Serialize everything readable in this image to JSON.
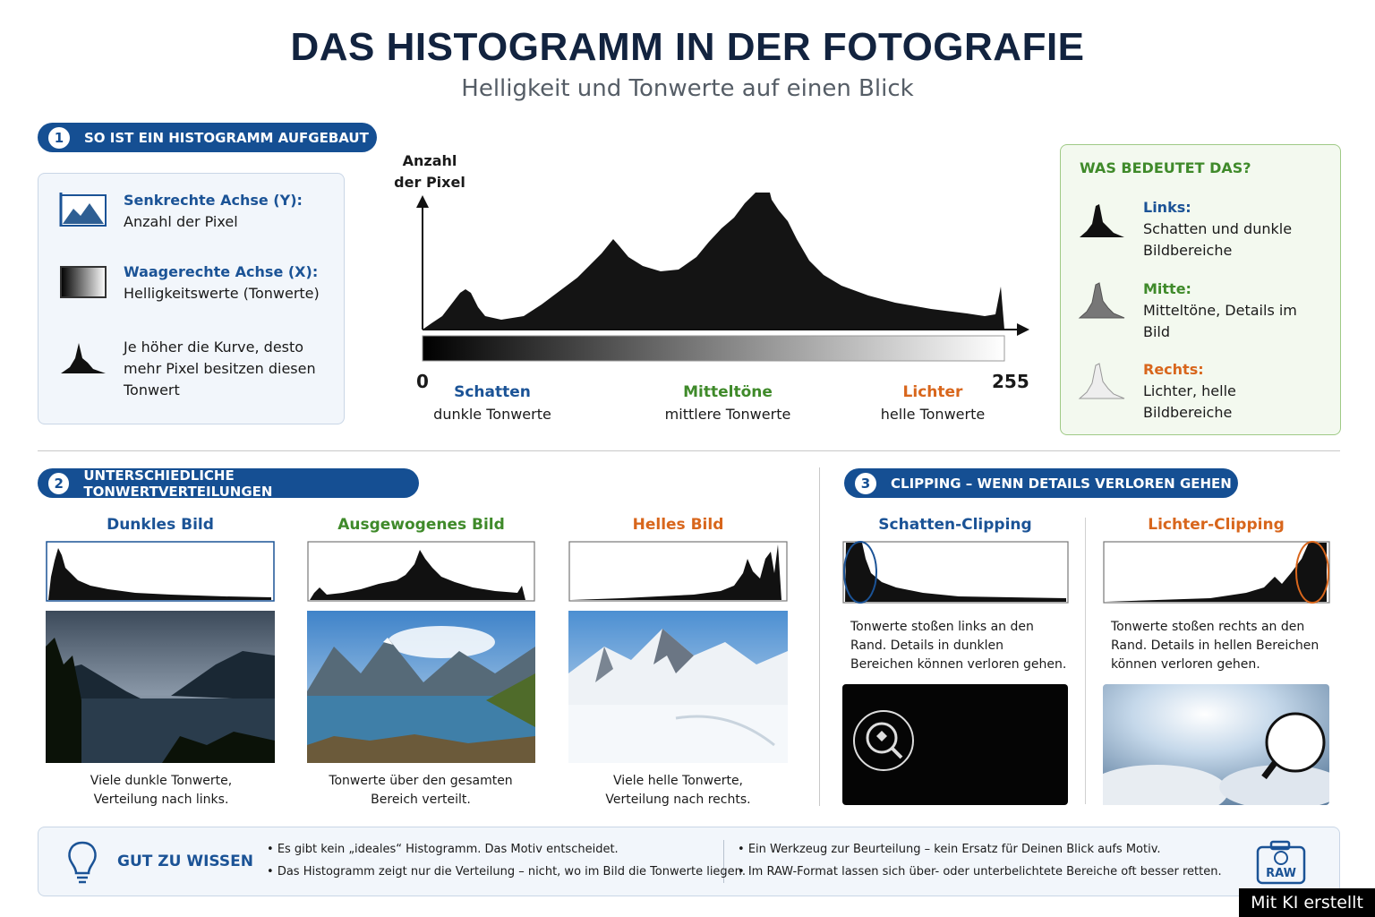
{
  "header": {
    "title": "DAS HISTOGRAMM IN DER FOTOGRAFIE",
    "subtitle": "Helligkeit und Tonwerte auf einen Blick"
  },
  "section1": {
    "number": "1",
    "title": "SO IST EIN HISTOGRAMM AUFGEBAUT",
    "items": [
      {
        "label": "Senkrechte Achse (Y):",
        "text": "Anzahl der Pixel"
      },
      {
        "label": "Waagerechte Achse (X):",
        "text": "Helligkeitswerte (Tonwerte)"
      },
      {
        "text": "Je höher die Kurve, desto mehr Pixel besitzen diesen Tonwert"
      }
    ],
    "diagram": {
      "y_label": "Anzahl der Pixel",
      "x_min": "0",
      "x_max": "255",
      "zones": [
        {
          "label": "Schatten",
          "text": "dunkle Tonwerte"
        },
        {
          "label": "Mitteltöne",
          "text": "mittlere Tonwerte"
        },
        {
          "label": "Lichter",
          "text": "helle Tonwerte"
        }
      ]
    },
    "meaning": {
      "title": "WAS BEDEUTET DAS?",
      "items": [
        {
          "label": "Links:",
          "text": "Schatten und dunkle Bildbereiche"
        },
        {
          "label": "Mitte:",
          "text": "Mitteltöne, Details im Bild"
        },
        {
          "label": "Rechts:",
          "text": "Lichter, helle Bildbereiche"
        }
      ]
    }
  },
  "section2": {
    "number": "2",
    "title": "UNTERSCHIEDLICHE TONWERTVERTEILUNGEN",
    "examples": [
      {
        "title": "Dunkles Bild",
        "caption": "Viele dunkle Tonwerte, Verteilung nach links."
      },
      {
        "title": "Ausgewogenes Bild",
        "caption": "Tonwerte über den gesamten Bereich verteilt."
      },
      {
        "title": "Helles Bild",
        "caption": "Viele helle Tonwerte, Verteilung nach rechts."
      }
    ]
  },
  "section3": {
    "number": "3",
    "title": "CLIPPING – WENN DETAILS VERLOREN GEHEN",
    "examples": [
      {
        "title": "Schatten-Clipping",
        "text": "Tonwerte stoßen links an den Rand. Details in dunklen Bereichen können verloren gehen."
      },
      {
        "title": "Lichter-Clipping",
        "text": "Tonwerte stoßen rechts an den Rand. Details in hellen Bereichen können verloren gehen."
      }
    ]
  },
  "tips": {
    "title": "GUT ZU WISSEN",
    "items": [
      "Es gibt kein „ideales“ Histogramm. Das Motiv entscheidet.",
      "Das Histogramm zeigt nur die Verteilung – nicht, wo im Bild die Tonwerte liegen.",
      "Ein Werkzeug zur Beurteilung – kein Ersatz für Deinen Blick aufs Motiv.",
      "Im RAW-Format lassen sich über- oder unterbelichtete Bereiche oft besser retten."
    ],
    "icon_label": "RAW"
  },
  "badge": "Mit KI erstellt"
}
